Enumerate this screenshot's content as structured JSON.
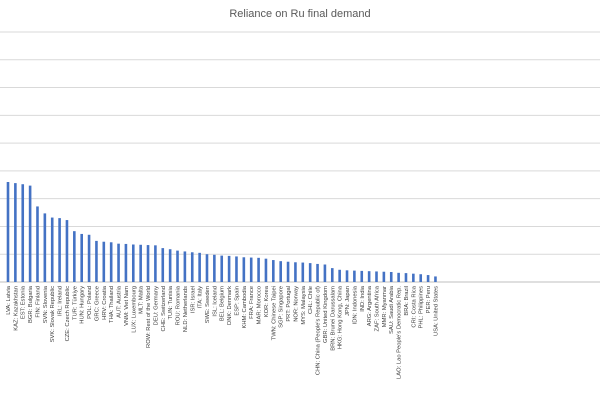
{
  "chart_data": {
    "type": "bar",
    "title": "Reliance on Ru final demand",
    "xlabel": "",
    "ylabel": "",
    "ylim": [
      0,
      9
    ],
    "grid": true,
    "bar_color": "#4472c4",
    "categories": [
      "LVA: Latvia",
      "KAZ: Kazakhstan",
      "EST: Estonia",
      "BGR: Bulgaria",
      "FIN: Finland",
      "SVN: Slovenia",
      "SVK: Slovak Republic",
      "IRL: Ireland",
      "CZE: Czech Republic",
      "TUR: Türkiye",
      "HUN: Hungary",
      "POL: Poland",
      "GRC: Greece",
      "HRV: Croatia",
      "THA: Thailand",
      "AUT: Austria",
      "VNM: Viet Nam",
      "LUX: Luxembourg",
      "MLT: Malta",
      "ROW: Rest of the World",
      "DEU: Germany",
      "CHE: Switzerland",
      "TUN: Tunisia",
      "ROU: Romania",
      "NLD: Netherlands",
      "ISR: Israel",
      "ITA: Italy",
      "SWE: Sweden",
      "ISL: Iceland",
      "BEL: Belgium",
      "DNK: Denmark",
      "ESP: Spain",
      "KHM: Cambodia",
      "FRA: France",
      "MAR: Morocco",
      "KOR: Korea",
      "TWN: Chinese Taipei",
      "SGP: Singapore",
      "PRT: Portugal",
      "NOR: Norway",
      "MYS: Malaysia",
      "CHL: Chile",
      "CHN: China (People's Republic of)",
      "GBR: United Kingdom",
      "BRN: Brunei Darussalam",
      "HKG: Hong Kong, China",
      "JPN: Japan",
      "IDN: Indonesia",
      "IND: India",
      "ARG: Argentina",
      "ZAF: South Africa",
      "MMR: Myanmar",
      "SAU: Saudi Arabia",
      "LAO: Lao People's Democratic Rep.",
      "BRA: Brazil",
      "CRI: Costa Rica",
      "PHL: Philippines",
      "PER: Peru",
      "USA: United States"
    ],
    "values": [
      3.6,
      3.56,
      3.52,
      3.47,
      2.72,
      2.47,
      2.32,
      2.3,
      2.23,
      1.83,
      1.73,
      1.7,
      1.48,
      1.45,
      1.43,
      1.38,
      1.37,
      1.35,
      1.34,
      1.33,
      1.32,
      1.22,
      1.18,
      1.13,
      1.1,
      1.07,
      1.05,
      1.0,
      0.98,
      0.95,
      0.94,
      0.92,
      0.89,
      0.88,
      0.87,
      0.84,
      0.79,
      0.75,
      0.73,
      0.71,
      0.7,
      0.68,
      0.65,
      0.63,
      0.5,
      0.44,
      0.42,
      0.41,
      0.4,
      0.39,
      0.38,
      0.37,
      0.36,
      0.33,
      0.32,
      0.3,
      0.28,
      0.25,
      0.2
    ]
  }
}
